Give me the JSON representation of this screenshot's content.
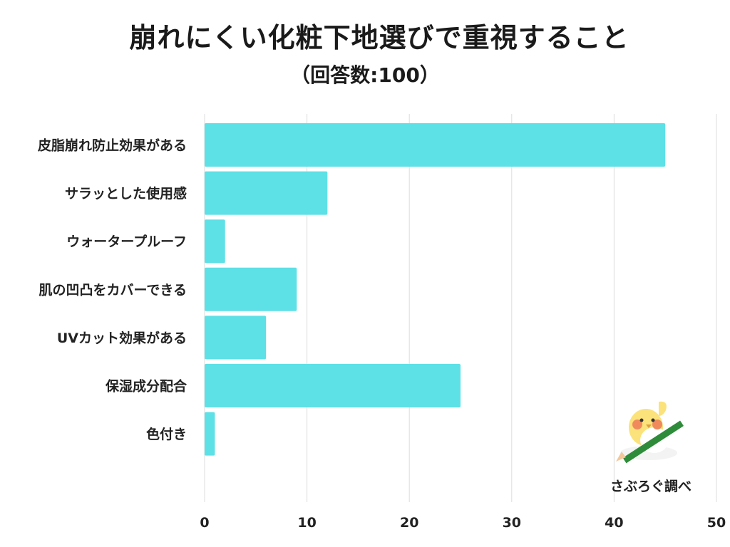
{
  "title": "崩れにくい化粧下地選びで重視すること",
  "subtitle": "（回答数:100）",
  "credit": "さぶろぐ調べ",
  "colors": {
    "bar": "#5de0e6",
    "grid": "#dddddd"
  },
  "chart_data": {
    "type": "bar",
    "orientation": "horizontal",
    "title": "崩れにくい化粧下地選びで重視すること",
    "subtitle": "（回答数:100）",
    "categories": [
      "皮脂崩れ防止効果がある",
      "サラッとした使用感",
      "ウォータープルーフ",
      "肌の凹凸をカバーできる",
      "UVカット効果がある",
      "保湿成分配合",
      "色付き"
    ],
    "values": [
      45,
      12,
      2,
      9,
      6,
      25,
      1
    ],
    "xlim": [
      0,
      50
    ],
    "ticks": [
      0,
      10,
      20,
      30,
      40,
      50
    ],
    "grid": true,
    "legend": "none"
  }
}
